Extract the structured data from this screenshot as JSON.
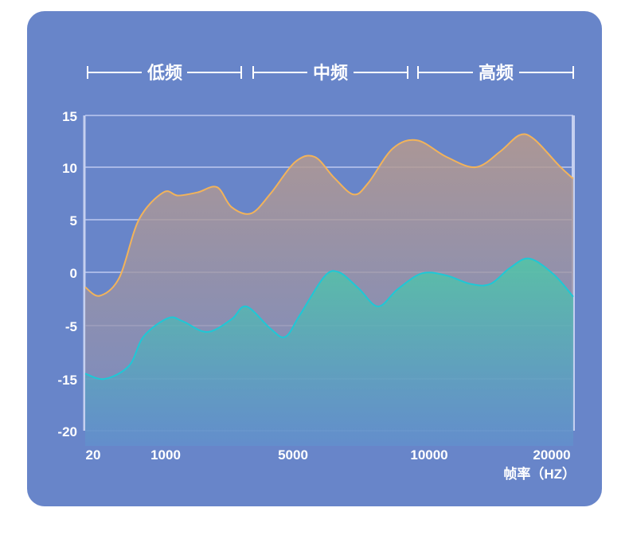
{
  "chart_data": {
    "type": "area",
    "xlabel": "帧率（HZ）",
    "y_ticks": [
      "15",
      "10",
      "5",
      "0",
      "-5",
      "-15",
      "-20"
    ],
    "x_ticks": [
      "20",
      "1000",
      "5000",
      "10000",
      "20000"
    ],
    "bands": [
      "低频",
      "中频",
      "高频"
    ],
    "grid": true,
    "colors": {
      "upper": "#f2b35a",
      "lower": "#1ec8d6",
      "background": "#6885c9"
    },
    "series": [
      {
        "values": [
          [
            0.0,
            -1.4
          ],
          [
            0.03,
            -2.2
          ],
          [
            0.07,
            -0.5
          ],
          [
            0.11,
            5
          ],
          [
            0.16,
            7.6
          ],
          [
            0.19,
            7.3
          ],
          [
            0.23,
            7.6
          ],
          [
            0.27,
            8.1
          ],
          [
            0.3,
            6.2
          ],
          [
            0.34,
            5.6
          ],
          [
            0.38,
            7.5
          ],
          [
            0.43,
            10.5
          ],
          [
            0.47,
            11
          ],
          [
            0.51,
            9
          ],
          [
            0.55,
            7.4
          ],
          [
            0.58,
            8.5
          ],
          [
            0.63,
            11.8
          ],
          [
            0.68,
            12.6
          ],
          [
            0.74,
            11
          ],
          [
            0.8,
            10
          ],
          [
            0.85,
            11.5
          ],
          [
            0.89,
            13.1
          ],
          [
            0.92,
            12.7
          ],
          [
            0.97,
            10.2
          ],
          [
            1.0,
            8.9
          ]
        ]
      },
      {
        "values": [
          [
            0.0,
            -14
          ],
          [
            0.04,
            -15
          ],
          [
            0.09,
            -12.5
          ],
          [
            0.12,
            -7
          ],
          [
            0.17,
            -4.3
          ],
          [
            0.2,
            -4.6
          ],
          [
            0.25,
            -6.2
          ],
          [
            0.3,
            -4.4
          ],
          [
            0.33,
            -3.2
          ],
          [
            0.38,
            -5.6
          ],
          [
            0.41,
            -7.1
          ],
          [
            0.44,
            -4
          ],
          [
            0.49,
            -0.4
          ],
          [
            0.52,
            0
          ],
          [
            0.56,
            -1.5
          ],
          [
            0.6,
            -3.2
          ],
          [
            0.64,
            -1.6
          ],
          [
            0.69,
            -0.1
          ],
          [
            0.74,
            -0.3
          ],
          [
            0.79,
            -1.1
          ],
          [
            0.83,
            -1.1
          ],
          [
            0.87,
            0.4
          ],
          [
            0.91,
            1.3
          ],
          [
            0.96,
            -0.2
          ],
          [
            1.0,
            -2.3
          ]
        ]
      }
    ]
  }
}
